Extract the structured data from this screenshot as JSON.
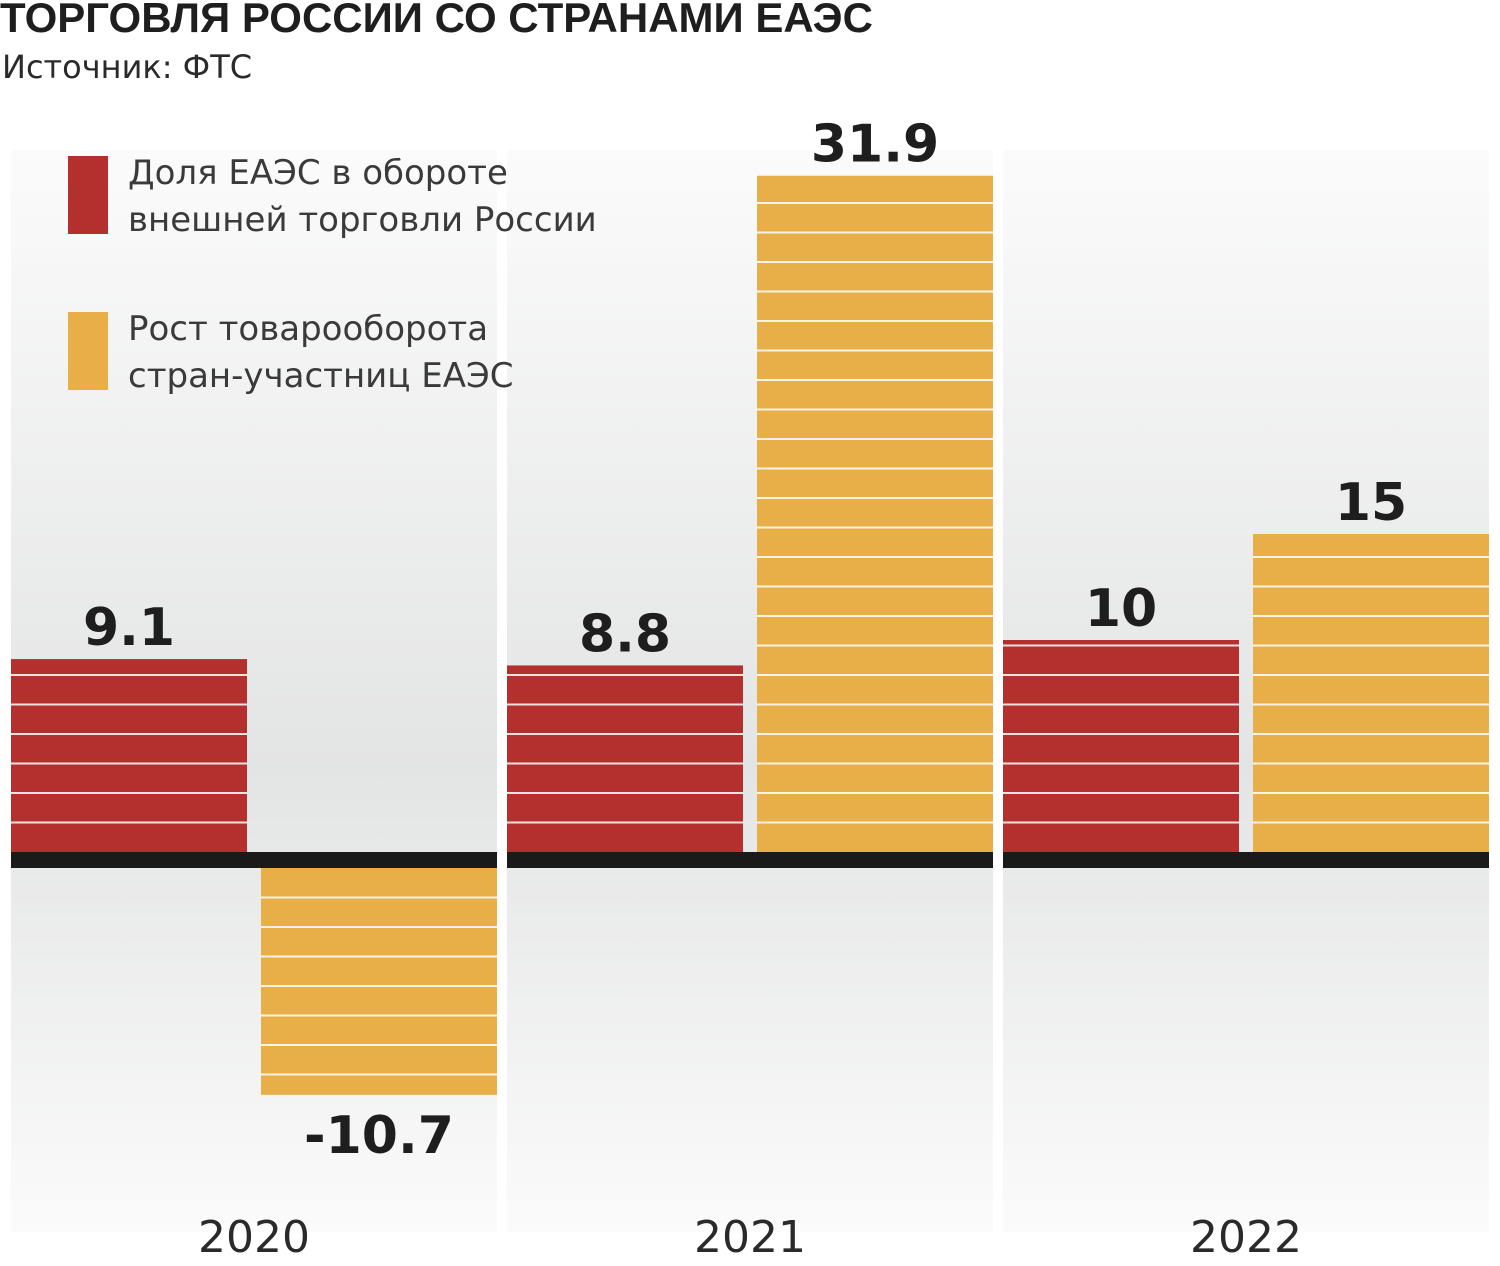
{
  "title": "ТОРГОВЛЯ РОССИИ СО СТРАНАМИ ЕАЭС",
  "subtitle": "Источник: ФТС",
  "colors": {
    "share": "#b3302f",
    "growth": "#e8ae48",
    "baseline": "#1a1a1a",
    "panel_top": "#fbfbfb",
    "panel_mid": "#e3e4e4",
    "text": "#1e1e1e"
  },
  "chart_data": {
    "type": "bar",
    "title": "ТОРГОВЛЯ РОССИИ СО СТРАНАМИ ЕАЭС",
    "categories": [
      "2020",
      "2021",
      "2022"
    ],
    "series": [
      {
        "name": "Доля ЕАЭС в обороте внешней торговли России",
        "values": [
          9.1,
          8.8,
          10
        ],
        "labels": [
          "9.1",
          "8.8",
          "10"
        ],
        "color": "#b3302f"
      },
      {
        "name": "Рост товарооборота стран-участниц ЕАЭС",
        "values": [
          -10.7,
          31.9,
          15
        ],
        "labels": [
          "-10.7",
          "31.9",
          "15"
        ],
        "color": "#e8ae48"
      }
    ],
    "legend": [
      {
        "lines": [
          "Доля ЕАЭС в обороте",
          "внешней торговли России"
        ]
      },
      {
        "lines": [
          "Рост товарооборота",
          "стран-участниц ЕАЭС"
        ]
      }
    ],
    "legend_position": "top-left",
    "grid": false,
    "ylim": [
      -16,
      34
    ]
  }
}
